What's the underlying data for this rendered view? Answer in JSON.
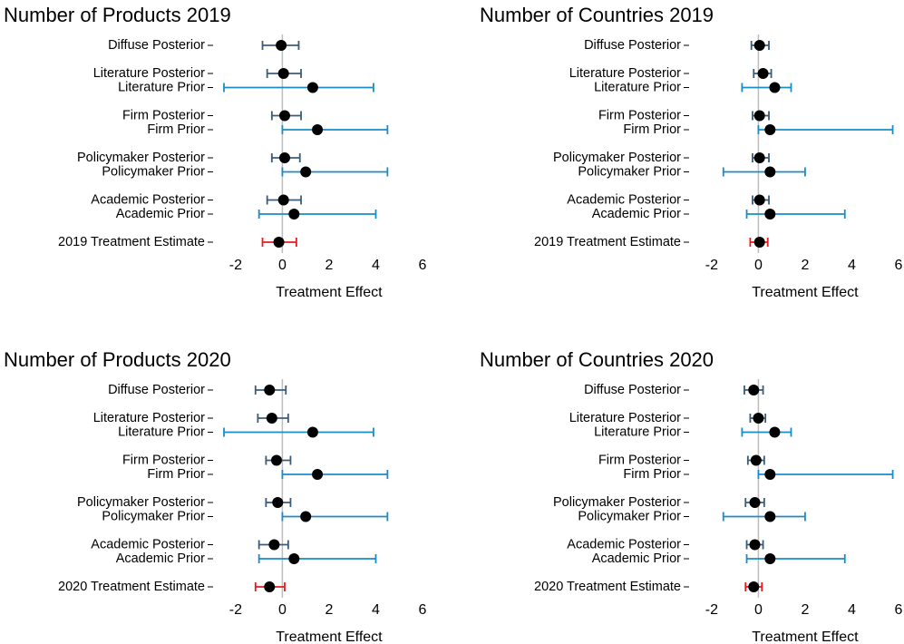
{
  "chart_data": [
    {
      "type": "forest",
      "title": "Number of Products 2019",
      "xlabel": "Treatment Effect",
      "xlim": [
        -2.5,
        6
      ],
      "xticks": [
        -2,
        0,
        2,
        4,
        6
      ],
      "marker_color": "#000000",
      "groups": [
        [
          {
            "label": "Diffuse Posterior",
            "value": -0.05,
            "lower": -0.85,
            "upper": 0.7,
            "color": "#3b5b7a"
          }
        ],
        [
          {
            "label": "Literature Posterior",
            "value": 0.05,
            "lower": -0.65,
            "upper": 0.8,
            "color": "#3b5b7a"
          },
          {
            "label": "Literature Prior",
            "value": 1.3,
            "lower": -2.5,
            "upper": 3.9,
            "color": "#1a8cc6"
          }
        ],
        [
          {
            "label": "Firm Posterior",
            "value": 0.1,
            "lower": -0.45,
            "upper": 0.8,
            "color": "#3b5b7a"
          },
          {
            "label": "Firm Prior",
            "value": 1.5,
            "lower": 0,
            "upper": 4.5,
            "color": "#1a8cc6"
          }
        ],
        [
          {
            "label": "Policymaker Posterior",
            "value": 0.1,
            "lower": -0.45,
            "upper": 0.75,
            "color": "#3b5b7a"
          },
          {
            "label": "Policymaker Prior",
            "value": 1.0,
            "lower": 0,
            "upper": 4.5,
            "color": "#1a8cc6"
          }
        ],
        [
          {
            "label": "Academic Posterior",
            "value": 0.05,
            "lower": -0.65,
            "upper": 0.8,
            "color": "#3b5b7a"
          },
          {
            "label": "Academic Prior",
            "value": 0.5,
            "lower": -1,
            "upper": 4,
            "color": "#1a8cc6"
          }
        ],
        [
          {
            "label": "2019 Treatment Estimate",
            "value": -0.15,
            "lower": -0.85,
            "upper": 0.6,
            "color": "#e8191f"
          }
        ]
      ]
    },
    {
      "type": "forest",
      "title": "Number of Countries 2019",
      "xlabel": "Treatment Effect",
      "xlim": [
        -2.5,
        6
      ],
      "xticks": [
        -2,
        0,
        2,
        4,
        6
      ],
      "marker_color": "#000000",
      "groups": [
        [
          {
            "label": "Diffuse Posterior",
            "value": 0.05,
            "lower": -0.3,
            "upper": 0.45,
            "color": "#3b5b7a"
          }
        ],
        [
          {
            "label": "Literature Posterior",
            "value": 0.2,
            "lower": -0.2,
            "upper": 0.55,
            "color": "#3b5b7a"
          },
          {
            "label": "Literature Prior",
            "value": 0.7,
            "lower": -0.7,
            "upper": 1.4,
            "color": "#1a8cc6"
          }
        ],
        [
          {
            "label": "Firm Posterior",
            "value": 0.05,
            "lower": -0.25,
            "upper": 0.45,
            "color": "#3b5b7a"
          },
          {
            "label": "Firm Prior",
            "value": 0.5,
            "lower": 0,
            "upper": 5.75,
            "color": "#1a8cc6"
          }
        ],
        [
          {
            "label": "Policymaker Posterior",
            "value": 0.05,
            "lower": -0.25,
            "upper": 0.45,
            "color": "#3b5b7a"
          },
          {
            "label": "Policymaker Prior",
            "value": 0.5,
            "lower": -1.5,
            "upper": 2,
            "color": "#1a8cc6"
          }
        ],
        [
          {
            "label": "Academic Posterior",
            "value": 0.05,
            "lower": -0.25,
            "upper": 0.45,
            "color": "#3b5b7a"
          },
          {
            "label": "Academic Prior",
            "value": 0.5,
            "lower": -0.5,
            "upper": 3.7,
            "color": "#1a8cc6"
          }
        ],
        [
          {
            "label": "2019 Treatment Estimate",
            "value": 0.05,
            "lower": -0.35,
            "upper": 0.4,
            "color": "#e8191f"
          }
        ]
      ]
    },
    {
      "type": "forest",
      "title": "Number of Products 2020",
      "xlabel": "Treatment Effect",
      "xlim": [
        -2.5,
        6
      ],
      "xticks": [
        -2,
        0,
        2,
        4,
        6
      ],
      "marker_color": "#000000",
      "groups": [
        [
          {
            "label": "Diffuse Posterior",
            "value": -0.55,
            "lower": -1.15,
            "upper": 0.15,
            "color": "#3b5b7a"
          }
        ],
        [
          {
            "label": "Literature Posterior",
            "value": -0.45,
            "lower": -1.05,
            "upper": 0.25,
            "color": "#3b5b7a"
          },
          {
            "label": "Literature Prior",
            "value": 1.3,
            "lower": -2.5,
            "upper": 3.9,
            "color": "#1a8cc6"
          }
        ],
        [
          {
            "label": "Firm Posterior",
            "value": -0.25,
            "lower": -0.7,
            "upper": 0.35,
            "color": "#3b5b7a"
          },
          {
            "label": "Firm Prior",
            "value": 1.5,
            "lower": 0,
            "upper": 4.5,
            "color": "#1a8cc6"
          }
        ],
        [
          {
            "label": "Policymaker Posterior",
            "value": -0.2,
            "lower": -0.7,
            "upper": 0.35,
            "color": "#3b5b7a"
          },
          {
            "label": "Policymaker Prior",
            "value": 1.0,
            "lower": 0,
            "upper": 4.5,
            "color": "#1a8cc6"
          }
        ],
        [
          {
            "label": "Academic Posterior",
            "value": -0.35,
            "lower": -1,
            "upper": 0.25,
            "color": "#3b5b7a"
          },
          {
            "label": "Academic Prior",
            "value": 0.5,
            "lower": -1,
            "upper": 4,
            "color": "#1a8cc6"
          }
        ],
        [
          {
            "label": "2020 Treatment Estimate",
            "value": -0.55,
            "lower": -1.15,
            "upper": 0.1,
            "color": "#e8191f"
          }
        ]
      ]
    },
    {
      "type": "forest",
      "title": "Number of Countries 2020",
      "xlabel": "Treatment Effect",
      "xlim": [
        -2.5,
        6
      ],
      "xticks": [
        -2,
        0,
        2,
        4,
        6
      ],
      "marker_color": "#000000",
      "groups": [
        [
          {
            "label": "Diffuse Posterior",
            "value": -0.2,
            "lower": -0.6,
            "upper": 0.2,
            "color": "#3b5b7a"
          }
        ],
        [
          {
            "label": "Literature Posterior",
            "value": 0,
            "lower": -0.35,
            "upper": 0.3,
            "color": "#3b5b7a"
          },
          {
            "label": "Literature Prior",
            "value": 0.7,
            "lower": -0.7,
            "upper": 1.4,
            "color": "#1a8cc6"
          }
        ],
        [
          {
            "label": "Firm Posterior",
            "value": -0.1,
            "lower": -0.45,
            "upper": 0.25,
            "color": "#3b5b7a"
          },
          {
            "label": "Firm Prior",
            "value": 0.5,
            "lower": 0,
            "upper": 5.75,
            "color": "#1a8cc6"
          }
        ],
        [
          {
            "label": "Policymaker Posterior",
            "value": -0.15,
            "lower": -0.55,
            "upper": 0.25,
            "color": "#3b5b7a"
          },
          {
            "label": "Policymaker Prior",
            "value": 0.5,
            "lower": -1.5,
            "upper": 2,
            "color": "#1a8cc6"
          }
        ],
        [
          {
            "label": "Academic Posterior",
            "value": -0.15,
            "lower": -0.5,
            "upper": 0.2,
            "color": "#3b5b7a"
          },
          {
            "label": "Academic Prior",
            "value": 0.5,
            "lower": -0.5,
            "upper": 3.7,
            "color": "#1a8cc6"
          }
        ],
        [
          {
            "label": "2020 Treatment Estimate",
            "value": -0.2,
            "lower": -0.55,
            "upper": 0.15,
            "color": "#e8191f"
          }
        ]
      ]
    }
  ]
}
